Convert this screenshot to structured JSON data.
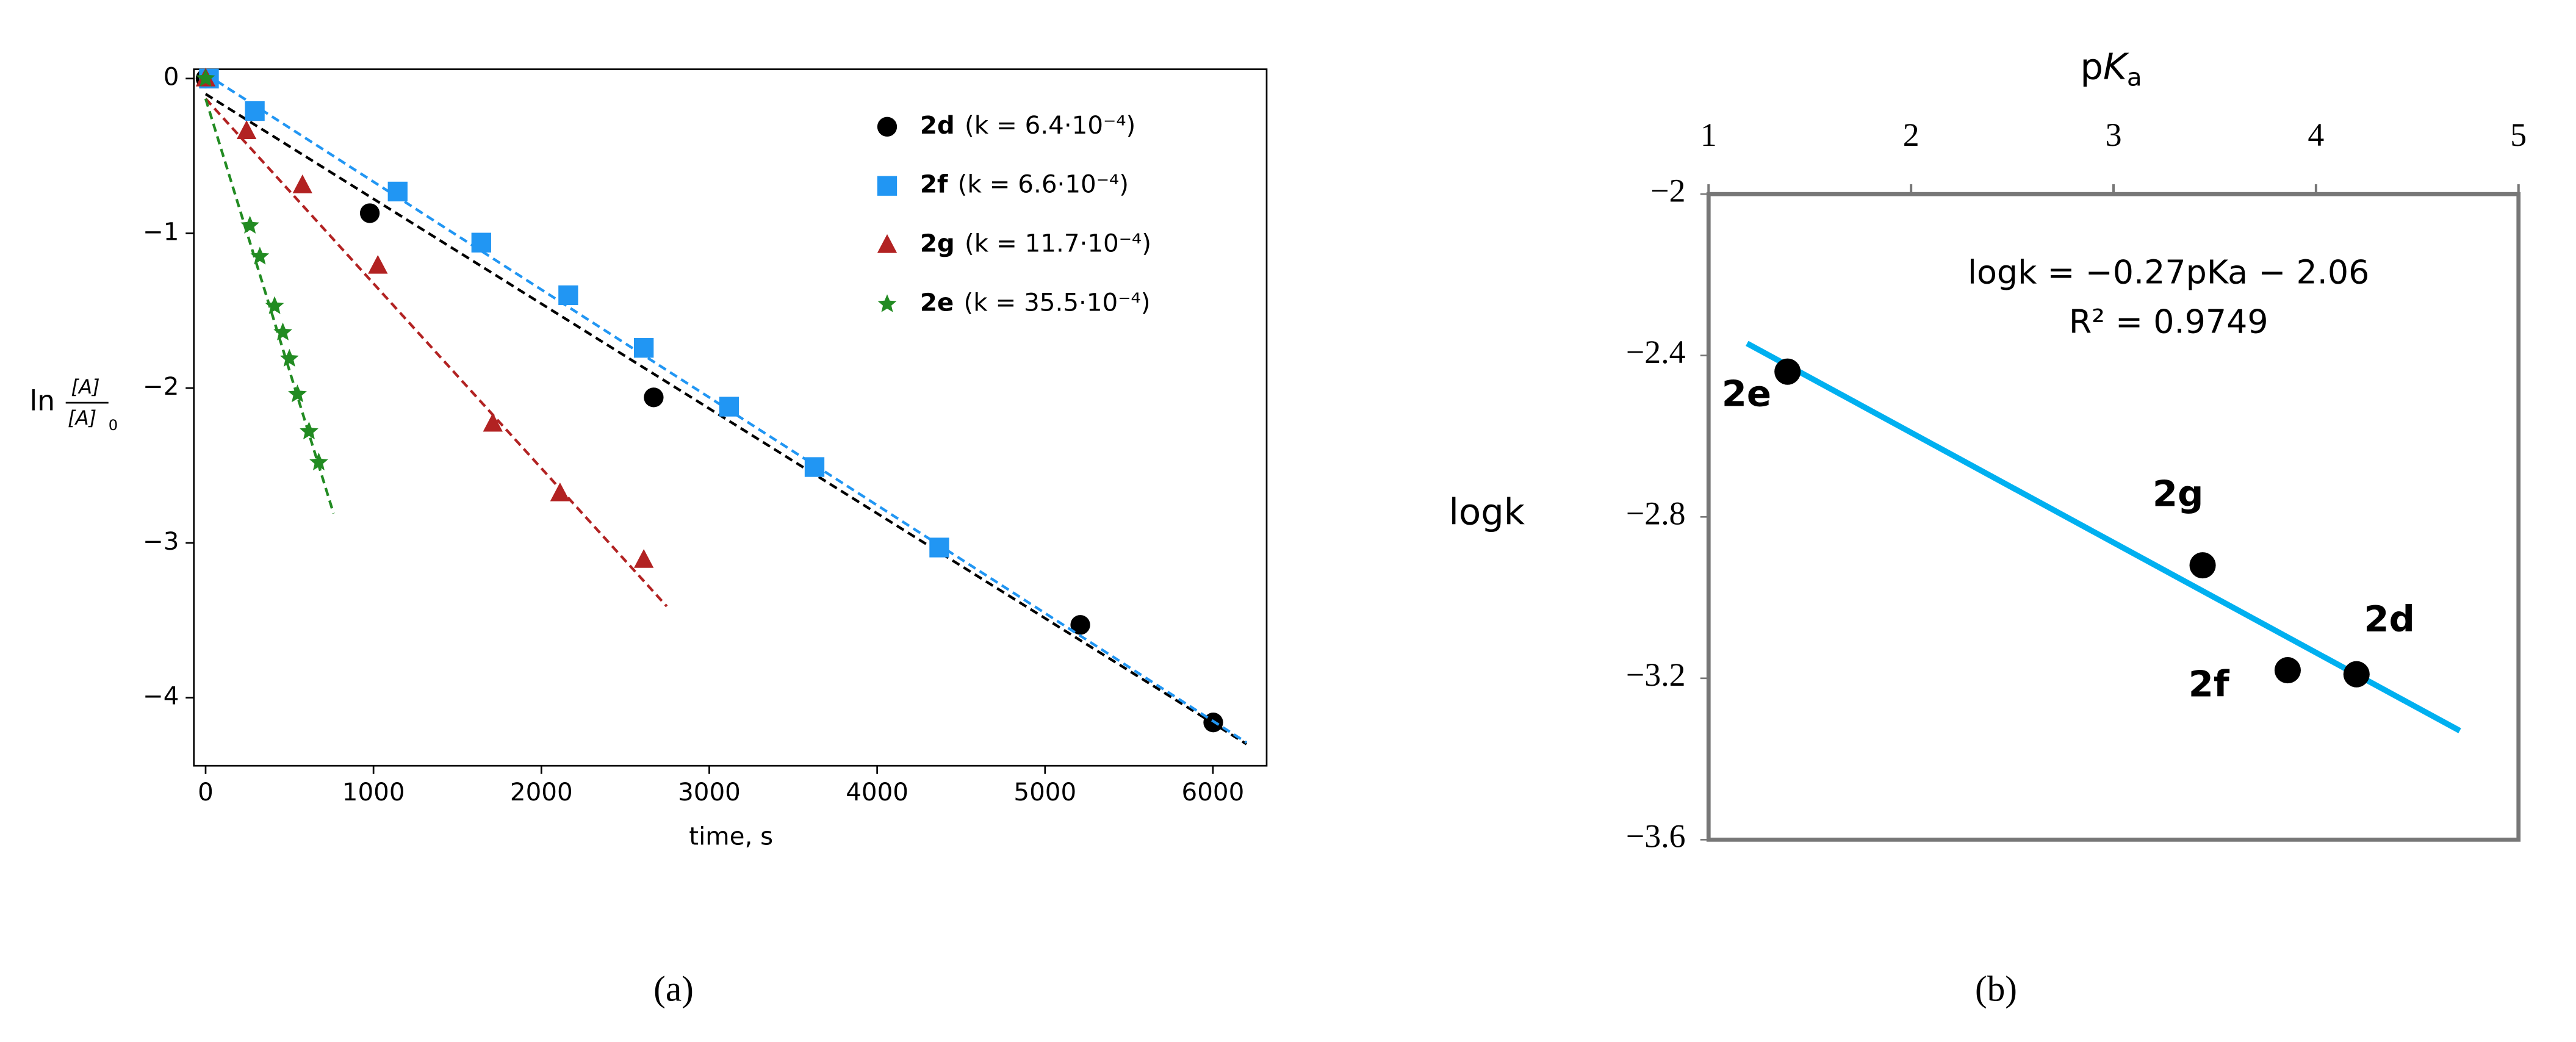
{
  "chart_data": [
    {
      "type": "scatter",
      "xlabel": "time, s",
      "ylabel_prefix": "ln",
      "ylabel_numerator": "[A]",
      "ylabel_denominator": "[A]",
      "ylabel_denominator_sub": "0",
      "caption": "(a)",
      "xlim": [
        -70,
        6320
      ],
      "ylim": [
        -4.44,
        0.06
      ],
      "xticks": [
        0,
        1000,
        2000,
        3000,
        4000,
        5000,
        6000
      ],
      "yticks": [
        {
          "value": 0,
          "label": "0"
        },
        {
          "value": -1,
          "label": "−1"
        },
        {
          "value": -2,
          "label": "−2"
        },
        {
          "value": -3,
          "label": "−3"
        },
        {
          "value": -4,
          "label": "−4"
        }
      ],
      "legend": "upper right",
      "series": [
        {
          "name": "2d",
          "label": "(k = 6.4·10⁻⁴)",
          "color": "#000000",
          "marker": "circle",
          "x": [
            0,
            978,
            2669,
            5210,
            6002
          ],
          "values": [
            0,
            -0.87,
            -2.06,
            -3.53,
            -4.16
          ],
          "fit": {
            "x": [
              0,
              6200
            ],
            "values": [
              -0.1,
              -4.3
            ]
          }
        },
        {
          "name": "2f",
          "label": "(k = 6.6·10⁻⁴)",
          "color": "#2196f3",
          "marker": "square",
          "x": [
            20,
            293,
            1144,
            1642,
            2160,
            2610,
            3118,
            3627,
            4370
          ],
          "values": [
            0,
            -0.21,
            -0.73,
            -1.06,
            -1.4,
            -1.74,
            -2.12,
            -2.51,
            -3.03
          ],
          "fit": {
            "x": [
              0,
              6200
            ],
            "values": [
              0.03,
              -4.29
            ]
          }
        },
        {
          "name": "2g",
          "label": "(k = 11.7·10⁻⁴)",
          "color": "#b22222",
          "marker": "triangle",
          "x": [
            0,
            244,
            577,
            1026,
            1711,
            2111,
            2610
          ],
          "values": [
            0,
            -0.34,
            -0.69,
            -1.21,
            -2.23,
            -2.68,
            -3.11
          ],
          "fit": {
            "x": [
              0,
              2747
            ],
            "values": [
              -0.13,
              -3.41
            ]
          }
        },
        {
          "name": "2e",
          "label": "(k = 35.5·10⁻⁴)",
          "color": "#228b22",
          "marker": "star",
          "x": [
            0,
            264,
            323,
            411,
            460,
            499,
            547,
            616,
            674
          ],
          "values": [
            0,
            -0.95,
            -1.15,
            -1.47,
            -1.64,
            -1.81,
            -2.04,
            -2.28,
            -2.48
          ],
          "fit": {
            "x": [
              0,
              762
            ],
            "values": [
              -0.13,
              -2.81
            ]
          }
        }
      ]
    },
    {
      "type": "scatter",
      "xlabel_p": "p",
      "xlabel_K": "K",
      "xlabel_sub": "a",
      "ylabel": "logk",
      "caption": "(b)",
      "annotation": "logk = −0.27pKa − 2.06",
      "annotation_r2": "R² = 0.9749",
      "xlim": [
        1,
        5
      ],
      "ylim": [
        -3.6,
        -2
      ],
      "xticks": [
        1,
        2,
        3,
        4,
        5
      ],
      "yticks": [
        {
          "value": -2,
          "label": "−2"
        },
        {
          "value": -2.4,
          "label": "−2.4"
        },
        {
          "value": -2.8,
          "label": "−2.8"
        },
        {
          "value": -3.2,
          "label": "−3.2"
        },
        {
          "value": -3.6,
          "label": "−3.6"
        }
      ],
      "series": [
        {
          "color": "#000000",
          "marker": "circle",
          "labels": [
            "2e",
            "2g",
            "2f",
            "2d"
          ],
          "x": [
            1.39,
            3.44,
            3.86,
            4.2
          ],
          "values": [
            -2.44,
            -2.92,
            -3.18,
            -3.19
          ],
          "fit": {
            "x": [
              1.19,
              4.71
            ],
            "values": [
              -2.37,
              -3.33
            ],
            "color": "#00b0f0"
          }
        }
      ]
    }
  ]
}
